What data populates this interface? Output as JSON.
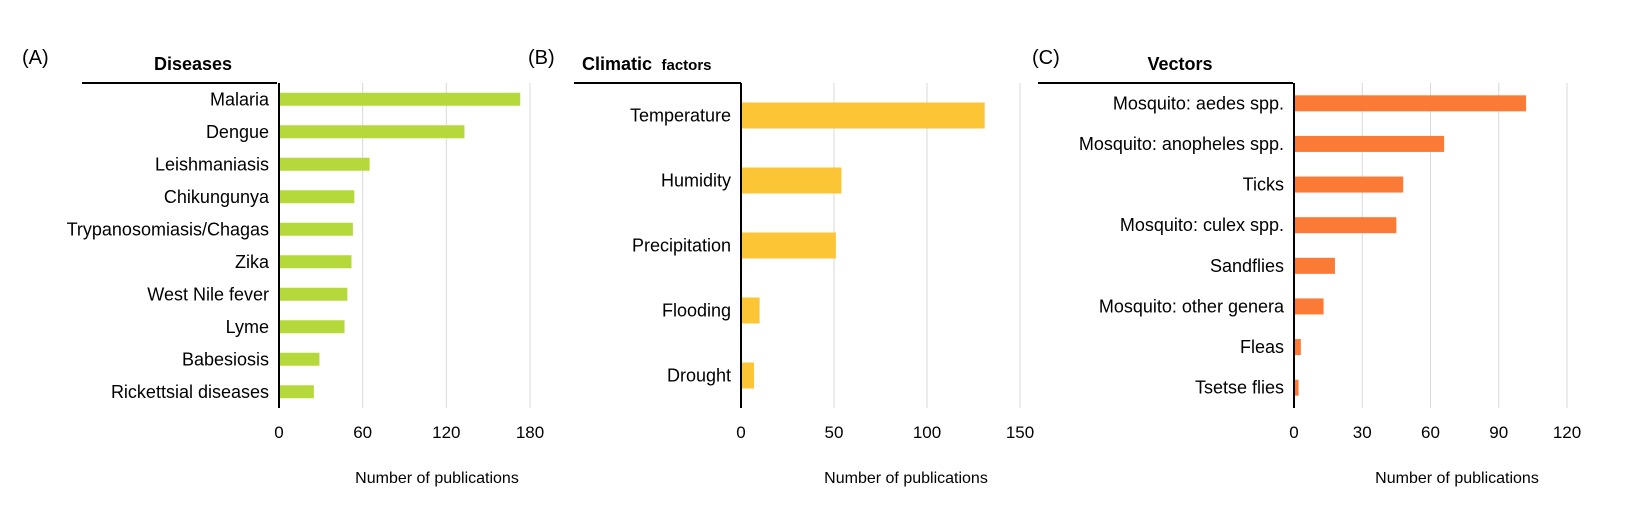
{
  "chart_data": [
    {
      "type": "bar",
      "orientation": "horizontal",
      "panel_label": "(A)",
      "title": "Diseases",
      "categories": [
        "Malaria",
        "Dengue",
        "Leishmaniasis",
        "Chikungunya",
        "Trypanosomiasis/Chagas",
        "Zika",
        "West Nile fever",
        "Lyme",
        "Babesiosis",
        "Rickettsial diseases"
      ],
      "values": [
        173,
        133,
        65,
        54,
        53,
        52,
        49,
        47,
        29,
        25
      ],
      "xlabel": "Number of publications",
      "xlim": [
        0,
        180
      ],
      "xticks": [
        0,
        60,
        120,
        180
      ],
      "grid": "vertical",
      "color": "#b5d93a"
    },
    {
      "type": "bar",
      "orientation": "horizontal",
      "panel_label": "(B)",
      "title": "Climatic",
      "title_suffix": "factors",
      "categories": [
        "Temperature",
        "Humidity",
        "Precipitation",
        "Flooding",
        "Drought"
      ],
      "values": [
        131,
        54,
        51,
        10,
        7
      ],
      "xlabel": "Number of publications",
      "xlim": [
        0,
        150
      ],
      "xticks": [
        0,
        50,
        100,
        150
      ],
      "grid": "vertical",
      "color": "#fbc536"
    },
    {
      "type": "bar",
      "orientation": "horizontal",
      "panel_label": "(C)",
      "title": "Vectors",
      "categories": [
        "Mosquito: aedes spp.",
        "Mosquito: anopheles spp.",
        "Ticks",
        "Mosquito: culex spp.",
        "Sandflies",
        "Mosquito: other genera",
        "Fleas",
        "Tsetse flies"
      ],
      "values": [
        102,
        66,
        48,
        45,
        18,
        13,
        3,
        2
      ],
      "xlabel": "Number of publications",
      "xlim": [
        0,
        120
      ],
      "xticks": [
        0,
        30,
        60,
        90,
        120
      ],
      "grid": "vertical",
      "color": "#fb7a36"
    }
  ]
}
